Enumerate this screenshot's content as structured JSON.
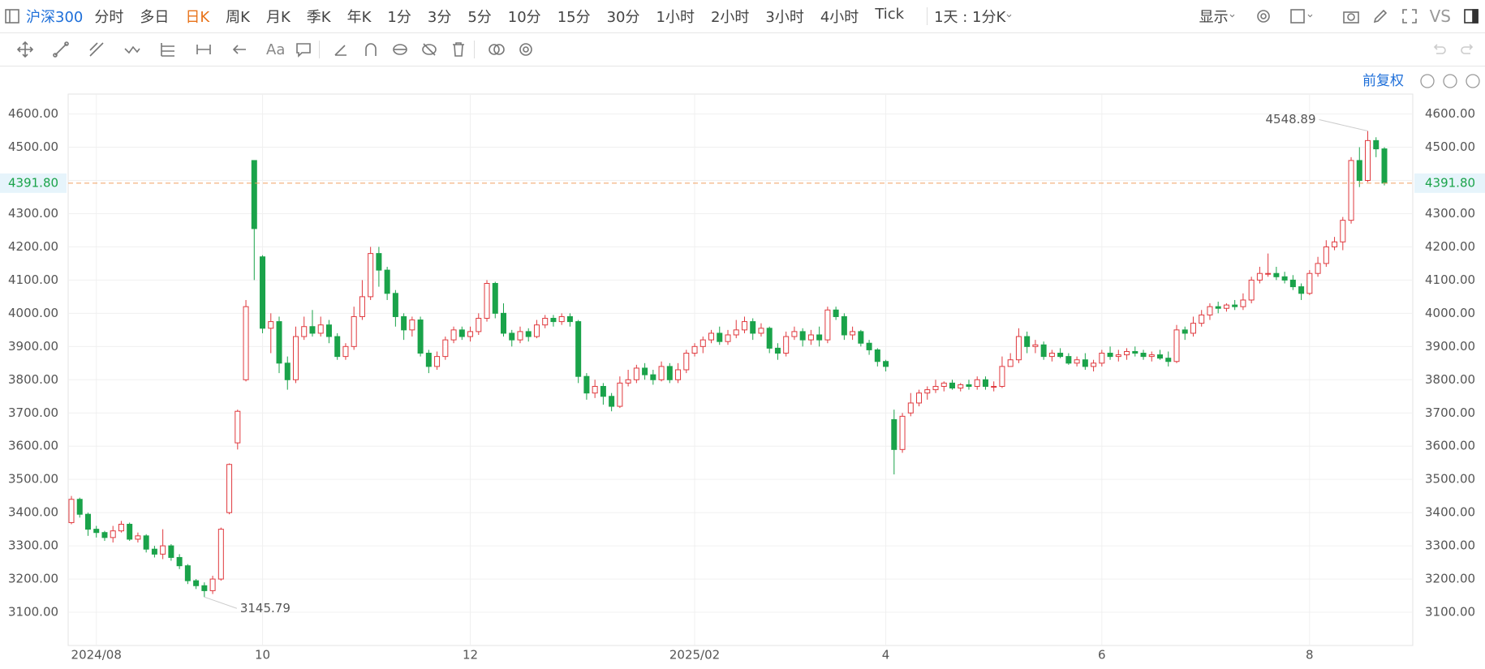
{
  "toolbar": {
    "symbol": "沪深300",
    "periods": [
      {
        "label": "分时"
      },
      {
        "label": "多日"
      },
      {
        "label": "日K",
        "active": true
      },
      {
        "label": "周K"
      },
      {
        "label": "月K"
      },
      {
        "label": "季K"
      },
      {
        "label": "年K"
      },
      {
        "label": "1分"
      },
      {
        "label": "3分"
      },
      {
        "label": "5分"
      },
      {
        "label": "10分"
      },
      {
        "label": "15分"
      },
      {
        "label": "30分"
      },
      {
        "label": "1小时"
      },
      {
        "label": "2小时"
      },
      {
        "label": "3小时"
      },
      {
        "label": "4小时"
      },
      {
        "label": "Tick"
      }
    ],
    "range": "1天 : 1分K",
    "display": "显示",
    "compare": "VS",
    "text_tool": "Aa",
    "adjust": "前复权",
    "active_color": "#e8731a"
  },
  "chart_data": {
    "type": "candlestick",
    "up_color": "#e0393e",
    "down_color": "#1aa34a",
    "grid": true,
    "ylim": [
      3000,
      4660
    ],
    "yticks": [
      {
        "value": 3100,
        "label": "3100.00"
      },
      {
        "value": 3200,
        "label": "3200.00"
      },
      {
        "value": 3300,
        "label": "3300.00"
      },
      {
        "value": 3400,
        "label": "3400.00"
      },
      {
        "value": 3500,
        "label": "3500.00"
      },
      {
        "value": 3600,
        "label": "3600.00"
      },
      {
        "value": 3700,
        "label": "3700.00"
      },
      {
        "value": 3800,
        "label": "3800.00"
      },
      {
        "value": 3900,
        "label": "3900.00"
      },
      {
        "value": 4000,
        "label": "4000.00"
      },
      {
        "value": 4100,
        "label": "4100.00"
      },
      {
        "value": 4200,
        "label": "4200.00"
      },
      {
        "value": 4300,
        "label": "4300.00"
      },
      {
        "value": 4400,
        "label": "4400.00"
      },
      {
        "value": 4500,
        "label": "4500.00"
      },
      {
        "value": 4600,
        "label": "4600.00"
      }
    ],
    "last_price": {
      "value": 4391.8,
      "label": "4391.80"
    },
    "annotations": {
      "high": 4548.89,
      "low": 3145.79
    },
    "categories": [
      null,
      null,
      null,
      "2024/08",
      null,
      null,
      null,
      null,
      null,
      null,
      null,
      null,
      null,
      null,
      null,
      null,
      null,
      null,
      null,
      null,
      null,
      null,
      null,
      "10",
      null,
      null,
      null,
      null,
      null,
      null,
      null,
      null,
      null,
      null,
      null,
      null,
      null,
      null,
      null,
      null,
      null,
      null,
      null,
      null,
      null,
      null,
      null,
      null,
      "12",
      null,
      null,
      null,
      null,
      null,
      null,
      null,
      null,
      null,
      null,
      null,
      null,
      null,
      null,
      null,
      null,
      null,
      null,
      null,
      null,
      null,
      null,
      null,
      null,
      null,
      null,
      "2025/02",
      null,
      null,
      null,
      null,
      null,
      null,
      null,
      null,
      null,
      null,
      null,
      null,
      null,
      null,
      null,
      null,
      null,
      null,
      null,
      null,
      null,
      null,
      "4",
      null,
      null,
      null,
      null,
      null,
      null,
      null,
      null,
      null,
      null,
      null,
      null,
      null,
      null,
      null,
      null,
      null,
      null,
      null,
      null,
      null,
      null,
      null,
      null,
      null,
      "6",
      null,
      null,
      null,
      null,
      null,
      null,
      null,
      null,
      null,
      null,
      null,
      null,
      null,
      null,
      null,
      null,
      null,
      null,
      null,
      null,
      null,
      null,
      null,
      null,
      "8",
      null,
      null,
      null,
      null,
      null,
      null,
      null,
      null,
      null
    ],
    "candles": [
      [
        3370,
        3450,
        3365,
        3440
      ],
      [
        3440,
        3445,
        3385,
        3395
      ],
      [
        3395,
        3400,
        3330,
        3350
      ],
      [
        3350,
        3360,
        3325,
        3340
      ],
      [
        3340,
        3345,
        3315,
        3325
      ],
      [
        3325,
        3360,
        3310,
        3345
      ],
      [
        3345,
        3375,
        3340,
        3365
      ],
      [
        3365,
        3370,
        3315,
        3320
      ],
      [
        3320,
        3340,
        3310,
        3330
      ],
      [
        3330,
        3335,
        3280,
        3290
      ],
      [
        3290,
        3300,
        3265,
        3275
      ],
      [
        3275,
        3350,
        3260,
        3300
      ],
      [
        3300,
        3305,
        3255,
        3265
      ],
      [
        3265,
        3275,
        3230,
        3240
      ],
      [
        3240,
        3245,
        3185,
        3195
      ],
      [
        3195,
        3200,
        3170,
        3180
      ],
      [
        3180,
        3190,
        3145.79,
        3165
      ],
      [
        3165,
        3210,
        3155,
        3200
      ],
      [
        3200,
        3355,
        3195,
        3350
      ],
      [
        3400,
        3548,
        3395,
        3545
      ],
      [
        3610,
        3710,
        3590,
        3705
      ],
      [
        3800,
        4040,
        3795,
        4020
      ],
      [
        4460,
        4460,
        4100,
        4255
      ],
      [
        4170,
        4175,
        3940,
        3955
      ],
      [
        3955,
        4000,
        3880,
        3975
      ],
      [
        3975,
        3990,
        3820,
        3850
      ],
      [
        3850,
        3870,
        3770,
        3800
      ],
      [
        3800,
        3960,
        3790,
        3930
      ],
      [
        3930,
        3990,
        3920,
        3960
      ],
      [
        3960,
        4010,
        3930,
        3940
      ],
      [
        3940,
        3990,
        3930,
        3965
      ],
      [
        3965,
        3980,
        3910,
        3930
      ],
      [
        3930,
        3940,
        3860,
        3870
      ],
      [
        3870,
        3910,
        3860,
        3900
      ],
      [
        3900,
        4020,
        3890,
        3990
      ],
      [
        3990,
        4100,
        3980,
        4050
      ],
      [
        4050,
        4200,
        4040,
        4180
      ],
      [
        4180,
        4200,
        4080,
        4130
      ],
      [
        4130,
        4140,
        4040,
        4060
      ],
      [
        4060,
        4070,
        3960,
        3990
      ],
      [
        3990,
        4000,
        3920,
        3950
      ],
      [
        3950,
        3990,
        3930,
        3980
      ],
      [
        3980,
        3990,
        3870,
        3880
      ],
      [
        3880,
        3890,
        3820,
        3840
      ],
      [
        3840,
        3885,
        3830,
        3870
      ],
      [
        3870,
        3930,
        3860,
        3920
      ],
      [
        3920,
        3960,
        3910,
        3950
      ],
      [
        3950,
        3960,
        3920,
        3930
      ],
      [
        3930,
        3960,
        3915,
        3945
      ],
      [
        3945,
        4000,
        3935,
        3985
      ],
      [
        3985,
        4100,
        3975,
        4090
      ],
      [
        4090,
        4095,
        3985,
        4000
      ],
      [
        4000,
        4030,
        3930,
        3940
      ],
      [
        3940,
        3950,
        3900,
        3920
      ],
      [
        3920,
        3960,
        3910,
        3945
      ],
      [
        3945,
        3955,
        3915,
        3930
      ],
      [
        3930,
        3980,
        3925,
        3965
      ],
      [
        3965,
        3995,
        3955,
        3985
      ],
      [
        3985,
        3995,
        3960,
        3975
      ],
      [
        3975,
        4000,
        3965,
        3990
      ],
      [
        3990,
        4000,
        3960,
        3975
      ],
      [
        3975,
        3980,
        3790,
        3810
      ],
      [
        3810,
        3820,
        3740,
        3760
      ],
      [
        3760,
        3800,
        3745,
        3780
      ],
      [
        3780,
        3790,
        3725,
        3750
      ],
      [
        3750,
        3760,
        3705,
        3720
      ],
      [
        3720,
        3810,
        3715,
        3790
      ],
      [
        3790,
        3830,
        3780,
        3800
      ],
      [
        3800,
        3845,
        3790,
        3835
      ],
      [
        3835,
        3850,
        3800,
        3815
      ],
      [
        3815,
        3830,
        3785,
        3800
      ],
      [
        3800,
        3855,
        3795,
        3840
      ],
      [
        3840,
        3850,
        3790,
        3800
      ],
      [
        3800,
        3850,
        3790,
        3830
      ],
      [
        3830,
        3890,
        3820,
        3880
      ],
      [
        3880,
        3910,
        3870,
        3900
      ],
      [
        3900,
        3930,
        3880,
        3920
      ],
      [
        3920,
        3950,
        3910,
        3940
      ],
      [
        3940,
        3960,
        3905,
        3915
      ],
      [
        3915,
        3950,
        3905,
        3935
      ],
      [
        3935,
        3980,
        3925,
        3950
      ],
      [
        3950,
        3990,
        3940,
        3975
      ],
      [
        3975,
        3985,
        3920,
        3940
      ],
      [
        3940,
        3970,
        3930,
        3955
      ],
      [
        3955,
        3960,
        3880,
        3895
      ],
      [
        3895,
        3910,
        3860,
        3880
      ],
      [
        3880,
        3945,
        3870,
        3930
      ],
      [
        3930,
        3960,
        3920,
        3945
      ],
      [
        3945,
        3955,
        3900,
        3920
      ],
      [
        3920,
        3950,
        3905,
        3935
      ],
      [
        3935,
        3960,
        3900,
        3920
      ],
      [
        3920,
        4020,
        3910,
        4010
      ],
      [
        4010,
        4020,
        3980,
        3990
      ],
      [
        3990,
        4000,
        3920,
        3935
      ],
      [
        3935,
        3960,
        3920,
        3945
      ],
      [
        3945,
        3950,
        3900,
        3910
      ],
      [
        3910,
        3920,
        3875,
        3890
      ],
      [
        3890,
        3895,
        3840,
        3855
      ],
      [
        3855,
        3860,
        3825,
        3840
      ],
      [
        3680,
        3710,
        3515,
        3590
      ],
      [
        3590,
        3700,
        3580,
        3690
      ],
      [
        3700,
        3760,
        3690,
        3730
      ],
      [
        3730,
        3770,
        3720,
        3760
      ],
      [
        3760,
        3780,
        3740,
        3770
      ],
      [
        3770,
        3800,
        3760,
        3780
      ],
      [
        3780,
        3795,
        3765,
        3790
      ],
      [
        3790,
        3800,
        3770,
        3775
      ],
      [
        3775,
        3790,
        3765,
        3785
      ],
      [
        3785,
        3800,
        3770,
        3780
      ],
      [
        3780,
        3810,
        3770,
        3800
      ],
      [
        3800,
        3810,
        3770,
        3780
      ],
      [
        3780,
        3795,
        3765,
        3780
      ],
      [
        3780,
        3870,
        3775,
        3840
      ],
      [
        3840,
        3880,
        3840,
        3860
      ],
      [
        3860,
        3955,
        3850,
        3930
      ],
      [
        3930,
        3945,
        3880,
        3900
      ],
      [
        3900,
        3920,
        3880,
        3905
      ],
      [
        3905,
        3915,
        3860,
        3870
      ],
      [
        3870,
        3890,
        3855,
        3880
      ],
      [
        3880,
        3895,
        3865,
        3870
      ],
      [
        3870,
        3880,
        3845,
        3850
      ],
      [
        3850,
        3870,
        3840,
        3860
      ],
      [
        3860,
        3880,
        3830,
        3840
      ],
      [
        3840,
        3860,
        3825,
        3850
      ],
      [
        3850,
        3890,
        3840,
        3880
      ],
      [
        3880,
        3900,
        3860,
        3870
      ],
      [
        3870,
        3890,
        3855,
        3875
      ],
      [
        3875,
        3895,
        3860,
        3885
      ],
      [
        3885,
        3900,
        3870,
        3880
      ],
      [
        3880,
        3890,
        3860,
        3870
      ],
      [
        3870,
        3885,
        3855,
        3875
      ],
      [
        3875,
        3890,
        3860,
        3865
      ],
      [
        3865,
        3885,
        3840,
        3855
      ],
      [
        3855,
        3965,
        3850,
        3950
      ],
      [
        3950,
        3960,
        3920,
        3940
      ],
      [
        3940,
        3990,
        3930,
        3970
      ],
      [
        3970,
        4010,
        3960,
        3995
      ],
      [
        3995,
        4030,
        3980,
        4020
      ],
      [
        4020,
        4035,
        4000,
        4015
      ],
      [
        4015,
        4030,
        4005,
        4025
      ],
      [
        4025,
        4040,
        4010,
        4020
      ],
      [
        4020,
        4060,
        4010,
        4040
      ],
      [
        4040,
        4110,
        4030,
        4100
      ],
      [
        4100,
        4140,
        4090,
        4120
      ],
      [
        4120,
        4180,
        4110,
        4120
      ],
      [
        4120,
        4140,
        4100,
        4110
      ],
      [
        4110,
        4125,
        4090,
        4100
      ],
      [
        4100,
        4115,
        4070,
        4080
      ],
      [
        4080,
        4090,
        4040,
        4060
      ],
      [
        4060,
        4130,
        4055,
        4120
      ],
      [
        4120,
        4170,
        4110,
        4150
      ],
      [
        4150,
        4220,
        4140,
        4200
      ],
      [
        4200,
        4230,
        4190,
        4215
      ],
      [
        4215,
        4290,
        4190,
        4280
      ],
      [
        4280,
        4470,
        4270,
        4460
      ],
      [
        4460,
        4500,
        4380,
        4400
      ],
      [
        4400,
        4548.89,
        4395,
        4520
      ],
      [
        4520,
        4530,
        4470,
        4495
      ],
      [
        4495,
        4500,
        4385,
        4391.8
      ]
    ]
  }
}
